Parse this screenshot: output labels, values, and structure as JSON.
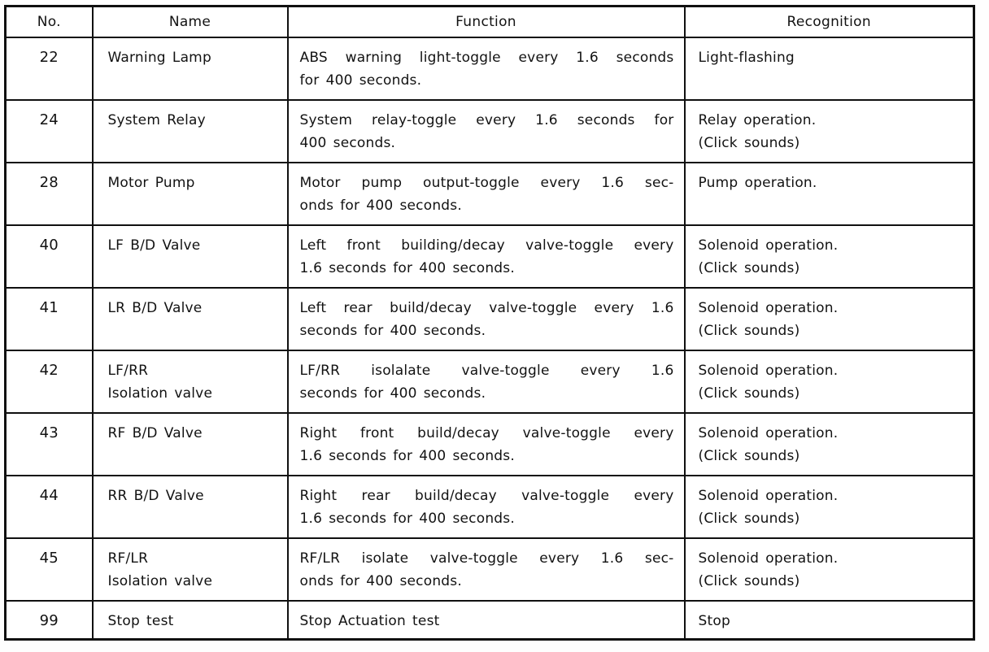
{
  "table": {
    "headers": [
      "No.",
      "Name",
      "Function",
      "Recognition"
    ],
    "rows": [
      {
        "no": "22",
        "name": [
          "Warning Lamp"
        ],
        "function": [
          "ABS warning light-toggle every 1.6 seconds",
          "for 400 seconds."
        ],
        "recognition": [
          "Light-flashing"
        ]
      },
      {
        "no": "24",
        "name": [
          "System Relay"
        ],
        "function": [
          "System relay-toggle every 1.6 seconds for",
          "400 seconds."
        ],
        "recognition": [
          "Relay operation.",
          "(Click sounds)"
        ]
      },
      {
        "no": "28",
        "name": [
          "Motor Pump"
        ],
        "function": [
          "Motor pump output-toggle every 1.6 sec-",
          "onds for 400 seconds."
        ],
        "recognition": [
          "Pump operation."
        ]
      },
      {
        "no": "40",
        "name": [
          "LF B/D Valve"
        ],
        "function": [
          "Left front building/decay valve-toggle every",
          "1.6 seconds for 400 seconds."
        ],
        "recognition": [
          "Solenoid operation.",
          "(Click sounds)"
        ]
      },
      {
        "no": "41",
        "name": [
          "LR B/D Valve"
        ],
        "function": [
          "Left rear build/decay valve-toggle every 1.6",
          "seconds for 400 seconds."
        ],
        "recognition": [
          "Solenoid operation.",
          "(Click sounds)"
        ]
      },
      {
        "no": "42",
        "name": [
          "LF/RR",
          "Isolation valve"
        ],
        "function": [
          "LF/RR isolalate valve-toggle every 1.6",
          "seconds for 400 seconds."
        ],
        "recognition": [
          "Solenoid operation.",
          "(Click sounds)"
        ]
      },
      {
        "no": "43",
        "name": [
          "RF B/D Valve"
        ],
        "function": [
          "Right front build/decay valve-toggle every",
          "1.6 seconds for 400 seconds."
        ],
        "recognition": [
          "Solenoid operation.",
          "(Click sounds)"
        ]
      },
      {
        "no": "44",
        "name": [
          "RR B/D Valve"
        ],
        "function": [
          "Right rear build/decay valve-toggle every",
          "1.6 seconds for 400 seconds."
        ],
        "recognition": [
          "Solenoid operation.",
          "(Click sounds)"
        ]
      },
      {
        "no": "45",
        "name": [
          "RF/LR",
          "Isolation valve"
        ],
        "function": [
          "RF/LR isolate valve-toggle every 1.6 sec-",
          "onds for 400 seconds."
        ],
        "recognition": [
          "Solenoid operation.",
          "(Click sounds)"
        ]
      },
      {
        "no": "99",
        "name": [
          "Stop test"
        ],
        "function": [
          "Stop Actuation test"
        ],
        "recognition": [
          "Stop"
        ]
      }
    ]
  }
}
